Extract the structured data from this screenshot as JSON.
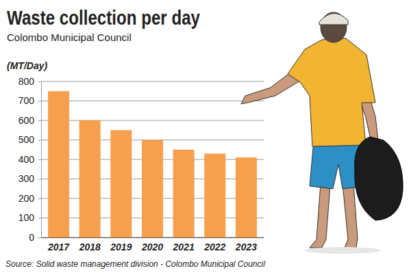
{
  "chart_data": {
    "type": "bar",
    "title": "Waste collection per day",
    "subtitle": "Colombo Municipal Council",
    "y_label": "(MT/Day)",
    "source": "Source: Solid waste management division - Colombo Municipal Council",
    "categories": [
      "2017",
      "2018",
      "2019",
      "2020",
      "2021",
      "2022",
      "2023"
    ],
    "values": [
      750,
      600,
      550,
      500,
      450,
      430,
      410
    ],
    "color": "#f6a04d",
    "ylim": [
      0,
      800
    ],
    "yticks": [
      0,
      100,
      200,
      300,
      400,
      500,
      600,
      700,
      800
    ],
    "grid": true
  }
}
